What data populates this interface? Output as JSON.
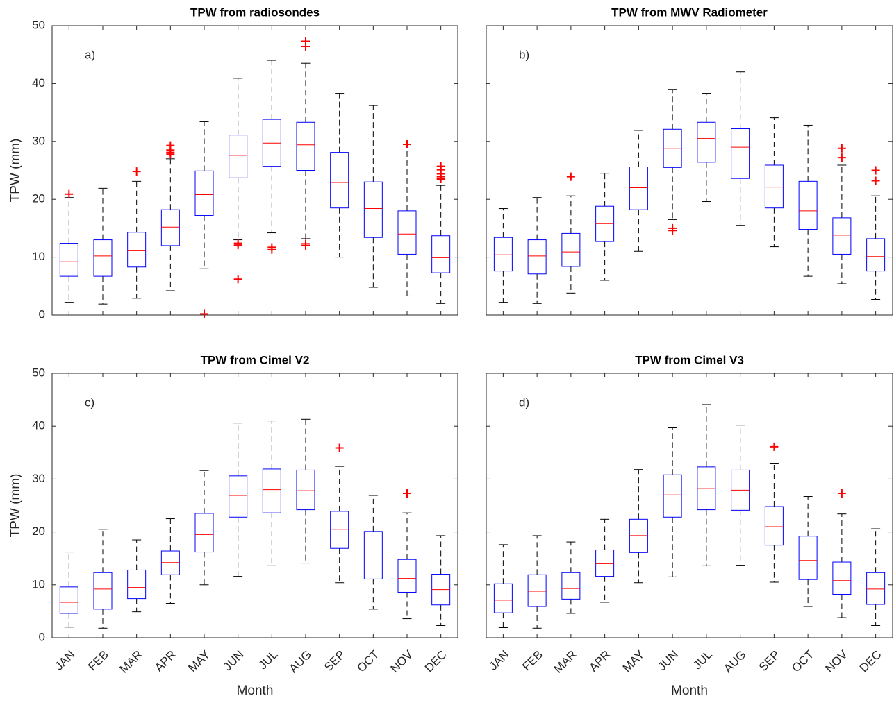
{
  "chart_data": [
    {
      "type": "box",
      "title": "TPW from radiosondes",
      "panel_label": "a)",
      "ylabel": "TPW (mm)",
      "categories": [
        "JAN",
        "FEB",
        "MAR",
        "APR",
        "MAY",
        "JUN",
        "JUL",
        "AUG",
        "SEP",
        "OCT",
        "NOV",
        "DEC"
      ],
      "show_xtick_labels": false,
      "show_ytick_labels": true,
      "whisker_low": [
        2.2,
        1.9,
        2.9,
        4.2,
        8.0,
        13.0,
        14.2,
        13.2,
        10.0,
        4.8,
        3.3,
        2.0
      ],
      "q1": [
        6.7,
        6.7,
        8.3,
        12.0,
        17.2,
        23.7,
        25.7,
        25.0,
        18.5,
        13.4,
        10.5,
        7.3
      ],
      "median": [
        9.2,
        10.2,
        11.1,
        15.2,
        20.8,
        27.6,
        29.7,
        29.4,
        22.9,
        18.4,
        14.0,
        9.9
      ],
      "q3": [
        12.4,
        13.0,
        14.3,
        18.2,
        24.9,
        31.1,
        33.8,
        33.3,
        28.1,
        23.0,
        18.0,
        13.7
      ],
      "whisker_high": [
        20.3,
        21.9,
        23.1,
        27.0,
        33.4,
        40.9,
        44.0,
        43.5,
        38.3,
        36.2,
        29.2,
        22.4
      ],
      "outliers": [
        [
          20.9
        ],
        [],
        [
          24.8
        ],
        [
          27.8,
          28.1,
          28.5,
          29.3
        ],
        [
          0.2
        ],
        [
          12.1,
          12.4,
          6.2
        ],
        [
          11.3,
          11.7
        ],
        [
          12.0,
          12.3,
          46.4,
          47.3
        ],
        [],
        [],
        [
          29.5
        ],
        [
          23.5,
          23.9,
          24.4,
          25.1,
          25.7
        ]
      ],
      "ylim": [
        0,
        50
      ],
      "yticks": [
        0,
        10,
        20,
        30,
        40,
        50
      ],
      "box_color": "#0000ff",
      "median_color": "#ff0000",
      "whisker_color": "#000000",
      "outlier_color": "#ff0000"
    },
    {
      "type": "box",
      "title": "TPW from MWV Radiometer",
      "panel_label": "b)",
      "categories": [
        "JAN",
        "FEB",
        "MAR",
        "APR",
        "MAY",
        "JUN",
        "JUL",
        "AUG",
        "SEP",
        "OCT",
        "NOV",
        "DEC"
      ],
      "show_xtick_labels": false,
      "show_ytick_labels": false,
      "whisker_low": [
        2.2,
        2.0,
        3.8,
        6.0,
        11.0,
        16.5,
        19.6,
        15.5,
        11.8,
        6.7,
        5.4,
        2.7
      ],
      "q1": [
        7.6,
        7.1,
        8.4,
        12.7,
        18.2,
        25.5,
        26.4,
        23.6,
        18.5,
        14.8,
        10.5,
        7.6
      ],
      "median": [
        10.4,
        10.2,
        10.9,
        15.8,
        22.0,
        28.8,
        30.5,
        29.0,
        22.1,
        18.0,
        13.8,
        10.1
      ],
      "q3": [
        13.4,
        13.0,
        14.1,
        18.8,
        25.6,
        32.1,
        33.3,
        32.2,
        25.9,
        23.1,
        16.8,
        13.2
      ],
      "whisker_high": [
        18.4,
        20.3,
        20.6,
        24.5,
        31.9,
        39.0,
        38.3,
        42.0,
        34.1,
        32.8,
        25.9,
        20.6
      ],
      "outliers": [
        [],
        [],
        [
          23.9
        ],
        [],
        [],
        [
          14.6,
          15.0
        ],
        [],
        [],
        [],
        [],
        [
          27.2,
          28.8
        ],
        [
          23.2,
          25.0
        ]
      ],
      "ylim": [
        0,
        50
      ],
      "yticks": [
        0,
        10,
        20,
        30,
        40,
        50
      ],
      "box_color": "#0000ff",
      "median_color": "#ff0000",
      "whisker_color": "#000000",
      "outlier_color": "#ff0000"
    },
    {
      "type": "box",
      "title": "TPW from Cimel V2",
      "panel_label": "c)",
      "ylabel": "TPW (mm)",
      "xlabel": "Month",
      "categories": [
        "JAN",
        "FEB",
        "MAR",
        "APR",
        "MAY",
        "JUN",
        "JUL",
        "AUG",
        "SEP",
        "OCT",
        "NOV",
        "DEC"
      ],
      "show_xtick_labels": true,
      "show_ytick_labels": true,
      "whisker_low": [
        2.0,
        1.8,
        4.9,
        6.5,
        10.0,
        11.6,
        13.6,
        14.1,
        10.4,
        5.4,
        3.6,
        2.3
      ],
      "q1": [
        4.6,
        5.4,
        7.4,
        11.9,
        16.2,
        22.8,
        23.6,
        24.2,
        16.9,
        11.1,
        8.6,
        6.2
      ],
      "median": [
        6.7,
        9.2,
        9.5,
        14.2,
        19.5,
        26.9,
        28.0,
        27.8,
        20.5,
        14.5,
        11.2,
        9.1
      ],
      "q3": [
        9.6,
        12.3,
        12.8,
        16.4,
        23.5,
        30.6,
        31.9,
        31.7,
        23.9,
        20.1,
        14.8,
        12.0
      ],
      "whisker_high": [
        16.2,
        20.5,
        18.5,
        22.5,
        31.6,
        40.6,
        41.0,
        41.3,
        32.4,
        26.9,
        23.6,
        19.3
      ],
      "outliers": [
        [],
        [],
        [],
        [],
        [],
        [],
        [],
        [],
        [
          35.9
        ],
        [],
        [
          27.3
        ],
        []
      ],
      "ylim": [
        0,
        50
      ],
      "yticks": [
        0,
        10,
        20,
        30,
        40,
        50
      ],
      "box_color": "#0000ff",
      "median_color": "#ff0000",
      "whisker_color": "#000000",
      "outlier_color": "#ff0000"
    },
    {
      "type": "box",
      "title": "TPW from Cimel V3",
      "panel_label": "d)",
      "xlabel": "Month",
      "categories": [
        "JAN",
        "FEB",
        "MAR",
        "APR",
        "MAY",
        "JUN",
        "JUL",
        "AUG",
        "SEP",
        "OCT",
        "NOV",
        "DEC"
      ],
      "show_xtick_labels": true,
      "show_ytick_labels": false,
      "whisker_low": [
        1.9,
        1.8,
        4.6,
        6.7,
        10.4,
        11.5,
        13.6,
        13.7,
        10.5,
        5.9,
        3.8,
        2.3
      ],
      "q1": [
        4.7,
        5.9,
        7.3,
        11.6,
        16.1,
        22.8,
        24.2,
        24.1,
        17.5,
        11.0,
        8.2,
        6.3
      ],
      "median": [
        7.1,
        8.8,
        9.3,
        14.0,
        19.3,
        27.0,
        28.2,
        27.9,
        21.0,
        14.6,
        10.8,
        9.2
      ],
      "q3": [
        10.2,
        11.9,
        12.3,
        16.6,
        22.4,
        30.8,
        32.3,
        31.7,
        24.8,
        19.2,
        14.3,
        12.3
      ],
      "whisker_high": [
        17.6,
        19.3,
        18.1,
        22.4,
        31.8,
        39.7,
        44.1,
        40.2,
        33.0,
        26.7,
        23.4,
        20.6
      ],
      "outliers": [
        [],
        [],
        [],
        [],
        [],
        [],
        [],
        [],
        [
          36.1
        ],
        [],
        [
          27.3
        ],
        []
      ],
      "ylim": [
        0,
        50
      ],
      "yticks": [
        0,
        10,
        20,
        30,
        40,
        50
      ],
      "box_color": "#0000ff",
      "median_color": "#ff0000",
      "whisker_color": "#000000",
      "outlier_color": "#ff0000"
    }
  ]
}
